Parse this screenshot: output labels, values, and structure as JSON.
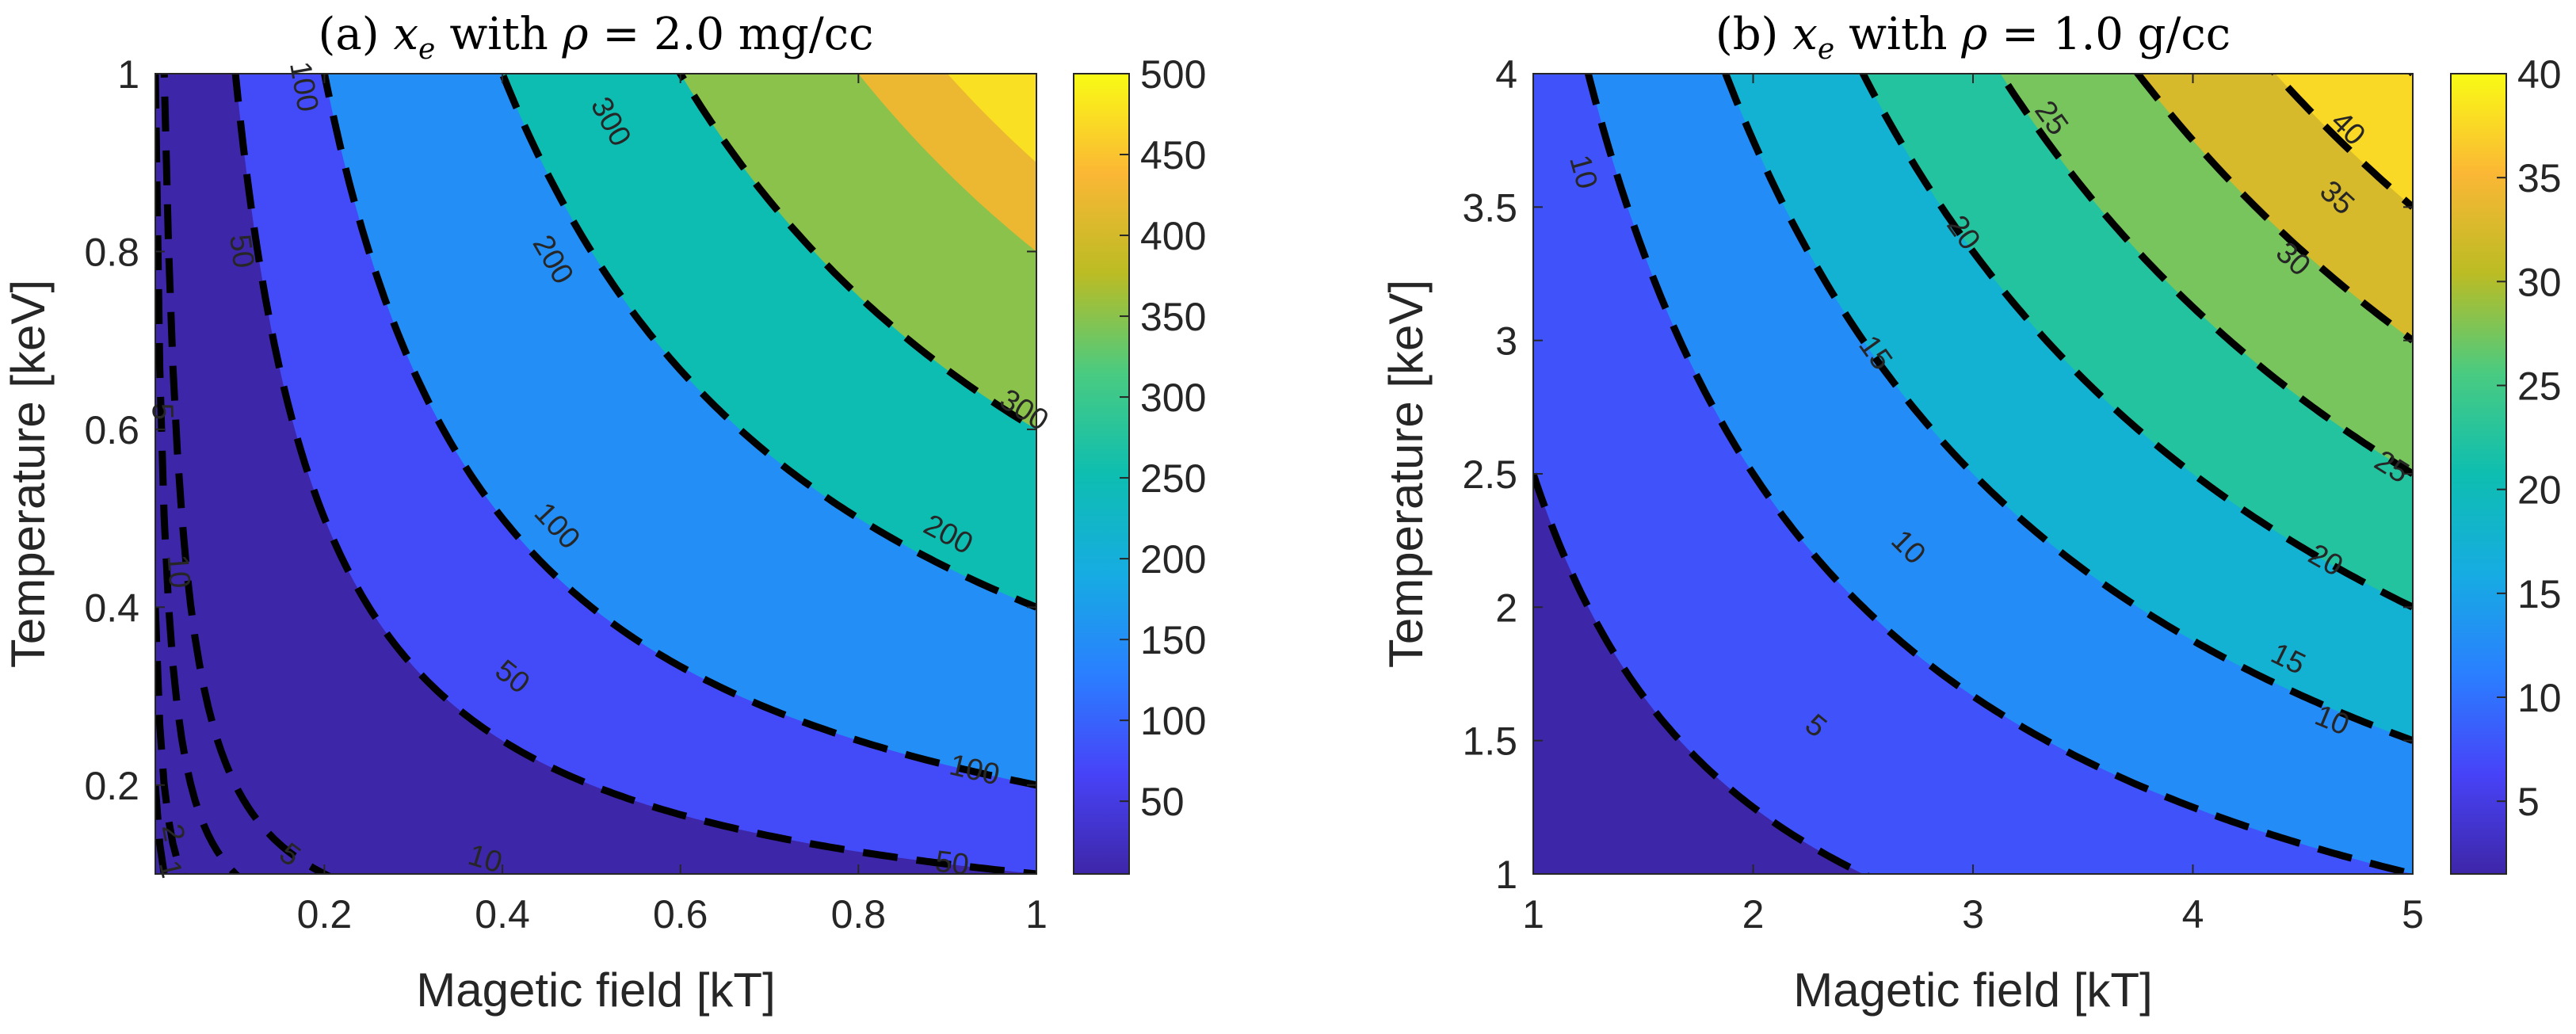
{
  "chart_data": [
    {
      "type": "contour",
      "id": "a",
      "title_prefix": "(a)",
      "title_var": "x",
      "title_sub": "e",
      "title_mid": "with",
      "title_rho": "ρ",
      "title_value": "= 2.0 mg/cc",
      "xlabel": "Magetic field [kT]",
      "ylabel": "Temperature [keV]",
      "xlim": [
        0.01,
        1
      ],
      "ylim": [
        0.1,
        1
      ],
      "xticks": [
        0.2,
        0.4,
        0.6,
        0.8,
        1
      ],
      "xtick_labels": [
        "0.2",
        "0.4",
        "0.6",
        "0.8",
        "1"
      ],
      "yticks": [
        0.2,
        0.4,
        0.6,
        0.8,
        1
      ],
      "ytick_labels": [
        "0.2",
        "0.4",
        "0.6",
        "0.8",
        "1"
      ],
      "model": "z = 500 * x * y",
      "clim": [
        5,
        500
      ],
      "colorbar_ticks": [
        50,
        100,
        150,
        200,
        250,
        300,
        350,
        400,
        450,
        500
      ],
      "colorbar_labels": [
        "50",
        "100",
        "150",
        "200",
        "250",
        "300",
        "350",
        "400",
        "450",
        "500"
      ],
      "fill_levels": [
        50,
        100,
        200,
        300,
        400,
        450
      ],
      "contour_levels": [
        1,
        2,
        5,
        10,
        50,
        100,
        200,
        300
      ],
      "contour_labels": [
        "1",
        "2",
        "5",
        "10",
        "50",
        "100",
        "200",
        "300"
      ],
      "contour_label_points": [
        {
          "text": "1",
          "x": 0.025,
          "y": 0.105
        },
        {
          "text": "2",
          "x": 0.028,
          "y": 0.146
        },
        {
          "text": "5",
          "x": 0.016,
          "y": 0.62
        },
        {
          "text": "5",
          "x": 0.16,
          "y": 0.12
        },
        {
          "text": "10",
          "x": 0.034,
          "y": 0.44
        },
        {
          "text": "10",
          "x": 0.38,
          "y": 0.115
        },
        {
          "text": "50",
          "x": 0.105,
          "y": 0.8
        },
        {
          "text": "50",
          "x": 0.41,
          "y": 0.32
        },
        {
          "text": "50",
          "x": 0.905,
          "y": 0.11
        },
        {
          "text": "100",
          "x": 0.175,
          "y": 0.985
        },
        {
          "text": "100",
          "x": 0.46,
          "y": 0.49
        },
        {
          "text": "100",
          "x": 0.93,
          "y": 0.215
        },
        {
          "text": "200",
          "x": 0.455,
          "y": 0.79
        },
        {
          "text": "200",
          "x": 0.9,
          "y": 0.48
        },
        {
          "text": "300",
          "x": 0.52,
          "y": 0.945
        },
        {
          "text": "300",
          "x": 0.985,
          "y": 0.62
        }
      ]
    },
    {
      "type": "contour",
      "id": "b",
      "title_prefix": "(b)",
      "title_var": "x",
      "title_sub": "e",
      "title_mid": "with",
      "title_rho": "ρ",
      "title_value": "= 1.0 g/cc",
      "xlabel": "Magetic field [kT]",
      "ylabel": "Temperature [keV]",
      "xlim": [
        1,
        5
      ],
      "ylim": [
        1,
        4
      ],
      "xticks": [
        1,
        2,
        3,
        4,
        5
      ],
      "xtick_labels": [
        "1",
        "2",
        "3",
        "4",
        "5"
      ],
      "yticks": [
        1,
        1.5,
        2,
        2.5,
        3,
        3.5,
        4
      ],
      "ytick_labels": [
        "1",
        "1.5",
        "2",
        "2.5",
        "3",
        "3.5",
        "4"
      ],
      "model": "z = 2 * x * y",
      "clim": [
        1.5,
        40
      ],
      "colorbar_ticks": [
        5,
        10,
        15,
        20,
        25,
        30,
        35,
        40
      ],
      "colorbar_labels": [
        "5",
        "10",
        "15",
        "20",
        "25",
        "30",
        "35",
        "40"
      ],
      "fill_levels": [
        5,
        10,
        15,
        20,
        25,
        30,
        35,
        40
      ],
      "contour_levels": [
        5,
        10,
        15,
        20,
        25,
        30,
        35,
        40
      ],
      "contour_labels": [
        "5",
        "10",
        "15",
        "20",
        "25",
        "30",
        "35",
        "40"
      ],
      "contour_label_points": [
        {
          "text": "5",
          "x": 2.28,
          "y": 1.55
        },
        {
          "text": "10",
          "x": 1.22,
          "y": 3.63
        },
        {
          "text": "10",
          "x": 2.7,
          "y": 2.22
        },
        {
          "text": "10",
          "x": 4.63,
          "y": 1.57
        },
        {
          "text": "15",
          "x": 2.55,
          "y": 2.95
        },
        {
          "text": "15",
          "x": 4.43,
          "y": 1.8
        },
        {
          "text": "20",
          "x": 2.95,
          "y": 3.4
        },
        {
          "text": "20",
          "x": 4.6,
          "y": 2.17
        },
        {
          "text": "25",
          "x": 3.35,
          "y": 3.83
        },
        {
          "text": "25",
          "x": 4.9,
          "y": 2.52
        },
        {
          "text": "30",
          "x": 4.45,
          "y": 3.3
        },
        {
          "text": "35",
          "x": 4.65,
          "y": 3.53
        },
        {
          "text": "40",
          "x": 4.7,
          "y": 3.79
        }
      ]
    }
  ],
  "colormap": [
    "#3e26a8",
    "#4743f8",
    "#2a7fff",
    "#16ace2",
    "#0ebeb0",
    "#49cb81",
    "#bbbc24",
    "#fbb735",
    "#f9fb15"
  ]
}
